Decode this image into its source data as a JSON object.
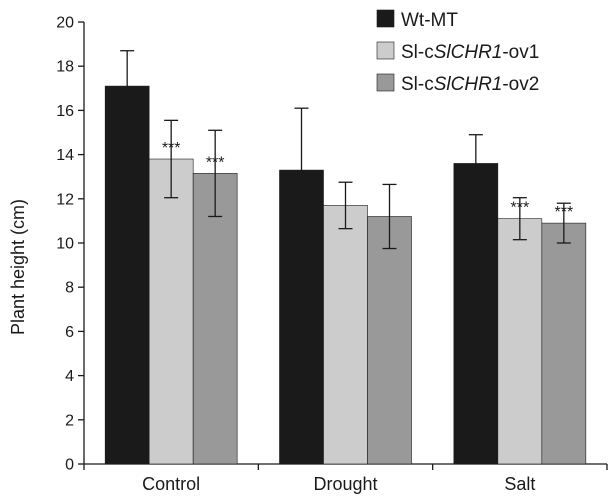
{
  "chart_data": {
    "type": "bar",
    "title": "",
    "xlabel": "",
    "ylabel": "Plant height (cm)",
    "ylim": [
      0,
      20
    ],
    "yticks": [
      0,
      2,
      4,
      6,
      8,
      10,
      12,
      14,
      16,
      18,
      20
    ],
    "grid": false,
    "legend_position": "top-right",
    "categories": [
      "Control",
      "Drought",
      "Salt"
    ],
    "series": [
      {
        "name": "Wt-MT",
        "name_parts": [
          {
            "t": "Wt-MT",
            "i": false
          }
        ],
        "color": "#1a1a1a",
        "values": [
          17.1,
          13.3,
          13.6
        ],
        "errors": [
          1.6,
          2.8,
          1.3
        ],
        "significance": [
          "",
          "",
          ""
        ]
      },
      {
        "name": "Sl-cSlCHR1-ov1",
        "name_parts": [
          {
            "t": "Sl-c",
            "i": false
          },
          {
            "t": "SlCHR1",
            "i": true
          },
          {
            "t": "-ov1",
            "i": false
          }
        ],
        "color": "#cccccc",
        "values": [
          13.8,
          11.7,
          11.1
        ],
        "errors": [
          1.75,
          1.05,
          0.95
        ],
        "significance": [
          "***",
          "",
          "***"
        ]
      },
      {
        "name": "Sl-cSlCHR1-ov2",
        "name_parts": [
          {
            "t": "Sl-c",
            "i": false
          },
          {
            "t": "SlCHR1",
            "i": true
          },
          {
            "t": "-ov2",
            "i": false
          }
        ],
        "color": "#999999",
        "values": [
          13.15,
          11.2,
          10.9
        ],
        "errors": [
          1.95,
          1.45,
          0.9
        ],
        "significance": [
          "***",
          "",
          "***"
        ]
      }
    ]
  }
}
